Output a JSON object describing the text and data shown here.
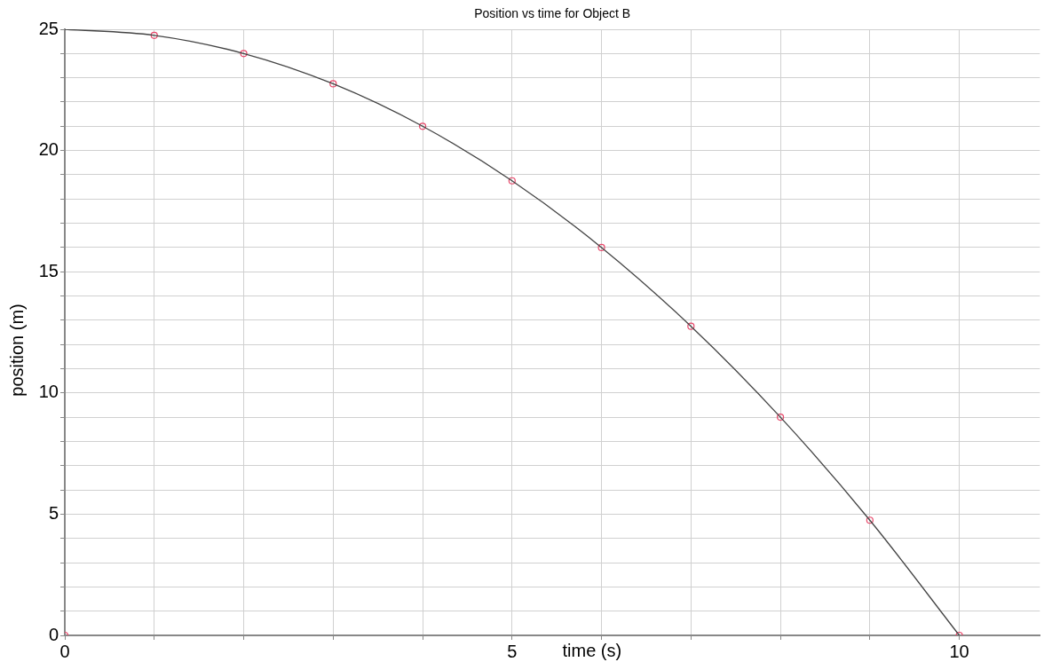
{
  "chart_data": {
    "type": "scatter",
    "title": "Position vs time for Object B",
    "xlabel": "time (s)",
    "ylabel": "position (m)",
    "xlim": [
      0,
      10.9
    ],
    "ylim": [
      0,
      25
    ],
    "xticks": [
      0,
      {
        "value": 1,
        "label": null
      },
      {
        "value": 2,
        "label": null
      },
      {
        "value": 3,
        "label": null
      },
      {
        "value": 4,
        "label": null
      },
      5,
      {
        "value": 6,
        "label": null
      },
      {
        "value": 7,
        "label": null
      },
      {
        "value": 8,
        "label": null
      },
      {
        "value": 9,
        "label": null
      },
      10
    ],
    "yticks": [
      0,
      {
        "value": 1,
        "label": null
      },
      {
        "value": 2,
        "label": null
      },
      {
        "value": 3,
        "label": null
      },
      {
        "value": 4,
        "label": null
      },
      5,
      {
        "value": 6,
        "label": null
      },
      {
        "value": 7,
        "label": null
      },
      {
        "value": 8,
        "label": null
      },
      {
        "value": 9,
        "label": null
      },
      10,
      {
        "value": 11,
        "label": null
      },
      {
        "value": 12,
        "label": null
      },
      {
        "value": 13,
        "label": null
      },
      {
        "value": 14,
        "label": null
      },
      15,
      {
        "value": 16,
        "label": null
      },
      {
        "value": 17,
        "label": null
      },
      {
        "value": 18,
        "label": null
      },
      {
        "value": 19,
        "label": null
      },
      20,
      {
        "value": 21,
        "label": null
      },
      {
        "value": 22,
        "label": null
      },
      {
        "value": 23,
        "label": null
      },
      {
        "value": 24,
        "label": null
      },
      25
    ],
    "grid": true,
    "series": [
      {
        "type": "line",
        "color": "#444444",
        "marker": "none",
        "x": [
          0,
          1,
          2,
          3,
          4,
          5,
          6,
          7,
          8,
          9,
          10
        ],
        "values": [
          25,
          24.75,
          24,
          22.75,
          21,
          18.75,
          16,
          12.75,
          9,
          4.75,
          0
        ]
      },
      {
        "color": "#e8476a",
        "marker": "circle",
        "x": [
          0,
          1,
          2,
          3,
          4,
          5,
          6,
          7,
          8,
          9,
          10
        ],
        "values": [
          0,
          24.75,
          24,
          22.75,
          21,
          18.75,
          16,
          12.75,
          9,
          4.75,
          0
        ]
      }
    ]
  }
}
